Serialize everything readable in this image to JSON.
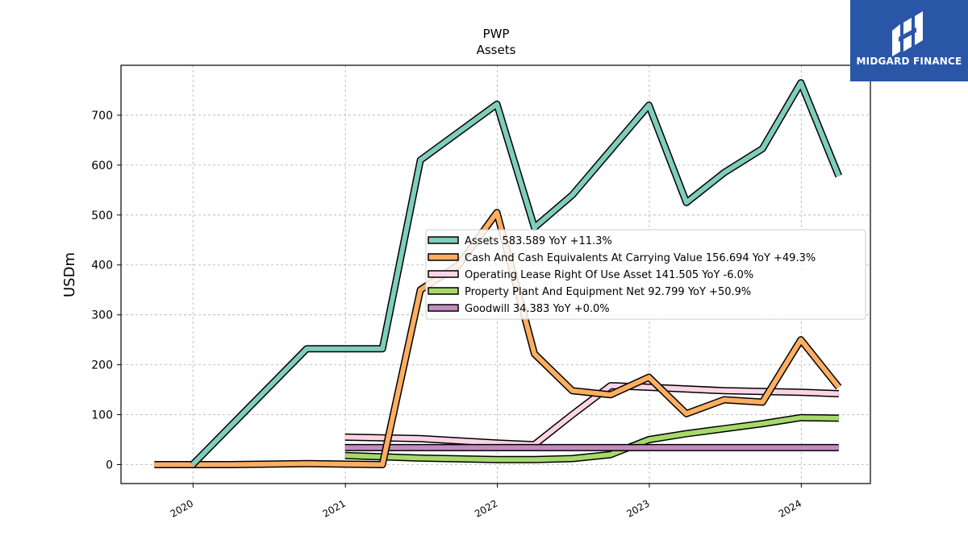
{
  "chart_data": {
    "type": "line",
    "title": "PWP",
    "subtitle": "Assets",
    "ylabel": "USDm",
    "xlabel": "",
    "ylim": [
      -38,
      800
    ],
    "xlim": [
      "2019-07-12",
      "2024-06-15"
    ],
    "yticks": [
      0,
      100,
      200,
      300,
      400,
      500,
      600,
      700
    ],
    "xticks": [
      "2020",
      "2021",
      "2022",
      "2023",
      "2024"
    ],
    "grid": true,
    "legend_position": "center-right",
    "series": [
      {
        "name": "Assets",
        "legend": "Assets  583.589 YoY +11.3%",
        "color": "#7fcdbb",
        "points": [
          [
            "2019-12-31",
            0
          ],
          [
            "2020-09-30",
            232
          ],
          [
            "2021-03-31",
            232
          ],
          [
            "2021-06-30",
            610
          ],
          [
            "2021-12-31",
            722
          ],
          [
            "2022-03-31",
            475
          ],
          [
            "2022-06-30",
            540
          ],
          [
            "2022-09-30",
            630
          ],
          [
            "2022-12-31",
            720
          ],
          [
            "2023-03-31",
            525
          ],
          [
            "2023-06-30",
            585
          ],
          [
            "2023-09-30",
            633
          ],
          [
            "2023-12-31",
            765
          ],
          [
            "2024-03-31",
            578
          ]
        ]
      },
      {
        "name": "Cash And Cash Equivalents At Carrying Value",
        "legend": "Cash And Cash Equivalents At Carrying Value  156.694 YoY +49.3%",
        "color": "#fdae61",
        "points": [
          [
            "2019-09-30",
            0
          ],
          [
            "2020-03-31",
            0
          ],
          [
            "2020-09-30",
            2
          ],
          [
            "2021-03-31",
            0
          ],
          [
            "2021-06-30",
            350
          ],
          [
            "2021-09-30",
            400
          ],
          [
            "2021-12-31",
            505
          ],
          [
            "2022-03-31",
            222
          ],
          [
            "2022-06-30",
            148
          ],
          [
            "2022-09-30",
            140
          ],
          [
            "2022-12-31",
            175
          ],
          [
            "2023-03-31",
            102
          ],
          [
            "2023-06-30",
            130
          ],
          [
            "2023-09-30",
            125
          ],
          [
            "2023-12-31",
            250
          ],
          [
            "2024-03-31",
            155
          ]
        ]
      },
      {
        "name": "Operating Lease Right Of Use Asset",
        "legend": "Operating Lease Right Of Use Asset  141.505 YoY -6.0%",
        "color": "#fcd5e5",
        "points": [
          [
            "2020-12-31",
            55
          ],
          [
            "2021-06-30",
            52
          ],
          [
            "2021-12-31",
            43
          ],
          [
            "2022-03-31",
            40
          ],
          [
            "2022-06-30",
            100
          ],
          [
            "2022-09-30",
            158
          ],
          [
            "2022-12-31",
            155
          ],
          [
            "2023-06-30",
            148
          ],
          [
            "2023-12-31",
            145
          ],
          [
            "2024-03-31",
            142
          ]
        ]
      },
      {
        "name": "Property Plant And Equipment Net",
        "legend": "Property Plant And Equipment Net  92.799 YoY +50.9%",
        "color": "#a6d96a",
        "points": [
          [
            "2020-12-31",
            18
          ],
          [
            "2021-06-30",
            13
          ],
          [
            "2021-12-31",
            10
          ],
          [
            "2022-03-31",
            10
          ],
          [
            "2022-06-30",
            12
          ],
          [
            "2022-09-30",
            20
          ],
          [
            "2022-12-31",
            50
          ],
          [
            "2023-03-31",
            62
          ],
          [
            "2023-06-30",
            72
          ],
          [
            "2023-09-30",
            82
          ],
          [
            "2023-12-31",
            94
          ],
          [
            "2024-03-31",
            93
          ]
        ]
      },
      {
        "name": "Goodwill",
        "legend": "Goodwill  34.383 YoY +0.0%",
        "color": "#c28cbf",
        "points": [
          [
            "2020-12-31",
            34
          ],
          [
            "2024-03-31",
            34
          ]
        ]
      }
    ]
  },
  "logo": {
    "text": "MIDGARD FINANCE",
    "icon": "midgard-finance-logo-mark",
    "background": "#2a56a8"
  }
}
